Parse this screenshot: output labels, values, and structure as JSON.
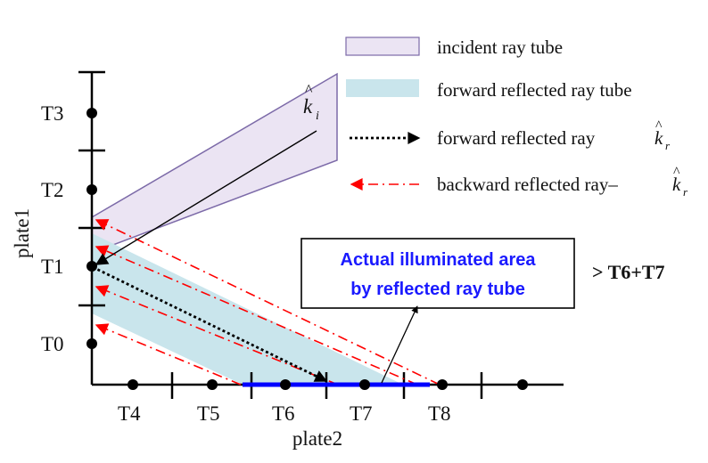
{
  "axes": {
    "vertical_name": "plate1",
    "horizontal_name": "plate2",
    "vertical_ticks": [
      "T0",
      "T1",
      "T2",
      "T3"
    ],
    "horizontal_ticks": [
      "T4",
      "T5",
      "T6",
      "T7",
      "T8"
    ]
  },
  "legend": {
    "incident_tube": "incident ray tube",
    "forward_tube": "forward reflected ray tube",
    "forward_ray": "forward reflected ray",
    "backward_ray": "backward reflected ray–",
    "forward_ray_symbol": "k",
    "forward_ray_symbol_sub": "r",
    "backward_ray_symbol": "k",
    "backward_ray_symbol_sub": "r"
  },
  "incident_ray_symbol": "k",
  "incident_ray_symbol_sub": "i",
  "callout": {
    "line1": "Actual illuminated area",
    "line2": "by reflected ray tube"
  },
  "result_text": "> T6+T7",
  "colors": {
    "incident_fill": "#ebe4f3",
    "incident_stroke": "#7c6aa8",
    "forward_fill": "#c9e5ec",
    "backward_ray": "#ff0000",
    "highlight": "#0000ff",
    "callout_text": "#1a1aff"
  }
}
